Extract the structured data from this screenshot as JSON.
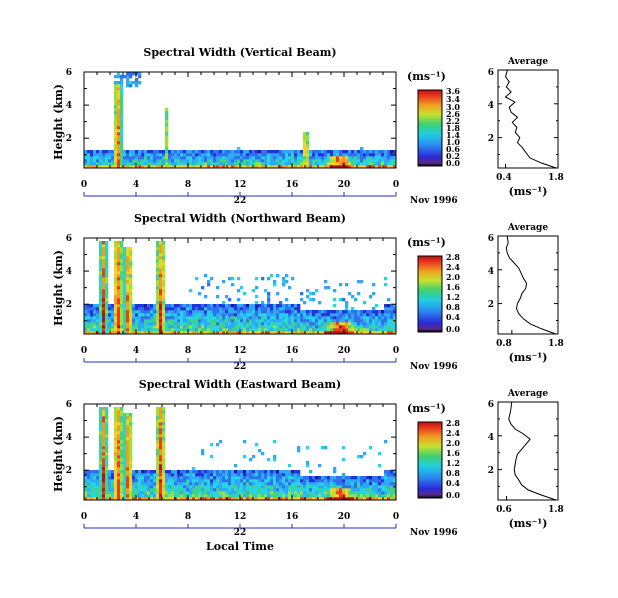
{
  "figure": {
    "xlabel_common": "Local Time",
    "date_label": "Nov 1996"
  },
  "chart_data": [
    {
      "type": "heatmap",
      "title": "Spectral Width (Vertical Beam)",
      "ylabel": "Height (km)",
      "xlabel": "",
      "x_ticks": [
        "0",
        "4",
        "8",
        "12",
        "16",
        "20",
        "0"
      ],
      "xlim": [
        0,
        24
      ],
      "x_day_label": "22",
      "date_label": "Nov 1996",
      "y_ticks": [
        "6",
        "4",
        "2"
      ],
      "ylim": [
        0.2,
        6
      ],
      "colorbar": {
        "unit": "(ms⁻¹)",
        "ticks": [
          "3.6",
          "3.4",
          "3.0",
          "2.6",
          "2.2",
          "1.8",
          "1.4",
          "1.0",
          "0.6",
          "0.2",
          "0.0"
        ],
        "range": [
          0.0,
          3.6
        ]
      },
      "average_profile": {
        "title": "Average",
        "xlabel": "(ms⁻¹)",
        "x_ticks": [
          "0.4",
          "1.8"
        ],
        "xlim": [
          0.2,
          1.8
        ],
        "y_ticks": [
          "6",
          "4",
          "2"
        ],
        "ylim": [
          0.2,
          6
        ],
        "heights": [
          0.2,
          0.5,
          0.8,
          1.1,
          1.4,
          1.7,
          2.0,
          2.3,
          2.6,
          2.9,
          3.2,
          3.5,
          3.8,
          4.1,
          4.4,
          4.7,
          5.0,
          5.3,
          5.6,
          6.0
        ],
        "values": [
          1.75,
          1.35,
          1.05,
          0.95,
          0.85,
          0.72,
          0.78,
          0.66,
          0.7,
          0.58,
          0.72,
          0.55,
          0.5,
          0.65,
          0.4,
          0.55,
          0.42,
          0.5,
          0.4,
          0.45
        ]
      }
    },
    {
      "type": "heatmap",
      "title": "Spectral Width (Northward Beam)",
      "ylabel": "Height (km)",
      "xlabel": "",
      "x_ticks": [
        "0",
        "4",
        "8",
        "12",
        "16",
        "20",
        "0"
      ],
      "xlim": [
        0,
        24
      ],
      "x_day_label": "22",
      "date_label": "Nov 1996",
      "y_ticks": [
        "6",
        "4",
        "2"
      ],
      "ylim": [
        0.2,
        6
      ],
      "colorbar": {
        "unit": "(ms⁻¹)",
        "ticks": [
          "2.8",
          "2.4",
          "2.0",
          "1.6",
          "1.2",
          "0.8",
          "0.4",
          "0.0"
        ],
        "range": [
          0.0,
          2.8
        ]
      },
      "average_profile": {
        "title": "Average",
        "xlabel": "(ms⁻¹)",
        "x_ticks": [
          "0.8",
          "1.8"
        ],
        "xlim": [
          0.5,
          1.8
        ],
        "y_ticks": [
          "6",
          "4",
          "2"
        ],
        "ylim": [
          0.2,
          6
        ],
        "heights": [
          0.2,
          0.5,
          0.8,
          1.1,
          1.4,
          1.7,
          2.0,
          2.3,
          2.6,
          2.9,
          3.2,
          3.5,
          3.8,
          4.1,
          4.4,
          4.7,
          5.0,
          5.3,
          5.6,
          6.0
        ],
        "values": [
          1.75,
          1.45,
          1.2,
          1.05,
          0.95,
          0.9,
          0.92,
          0.98,
          1.02,
          1.1,
          1.12,
          1.05,
          1.0,
          0.95,
          0.85,
          0.75,
          0.7,
          0.68,
          0.72,
          0.7
        ]
      }
    },
    {
      "type": "heatmap",
      "title": "Spectral Width (Eastward Beam)",
      "ylabel": "Height (km)",
      "xlabel": "Local Time",
      "x_ticks": [
        "0",
        "4",
        "8",
        "12",
        "16",
        "20",
        "0"
      ],
      "xlim": [
        0,
        24
      ],
      "x_day_label": "22",
      "date_label": "Nov 1996",
      "y_ticks": [
        "6",
        "4",
        "2"
      ],
      "ylim": [
        0.2,
        6
      ],
      "colorbar": {
        "unit": "(ms⁻¹)",
        "ticks": [
          "2.8",
          "2.4",
          "2.0",
          "1.6",
          "1.2",
          "0.8",
          "0.4",
          "0.0"
        ],
        "range": [
          0.0,
          2.8
        ]
      },
      "average_profile": {
        "title": "Average",
        "xlabel": "(ms⁻¹)",
        "x_ticks": [
          "0.6",
          "1.8"
        ],
        "xlim": [
          0.4,
          1.8
        ],
        "y_ticks": [
          "6",
          "4",
          "2"
        ],
        "ylim": [
          0.2,
          6
        ],
        "heights": [
          0.2,
          0.5,
          0.8,
          1.1,
          1.4,
          1.7,
          2.0,
          2.3,
          2.6,
          2.9,
          3.2,
          3.5,
          3.8,
          4.1,
          4.4,
          4.7,
          5.0,
          5.3,
          5.6,
          6.0
        ],
        "values": [
          1.75,
          1.4,
          1.1,
          0.95,
          0.88,
          0.8,
          0.78,
          0.8,
          0.82,
          0.85,
          0.95,
          1.05,
          1.15,
          1.0,
          0.8,
          0.7,
          0.65,
          0.68,
          0.7,
          0.72
        ]
      }
    }
  ]
}
